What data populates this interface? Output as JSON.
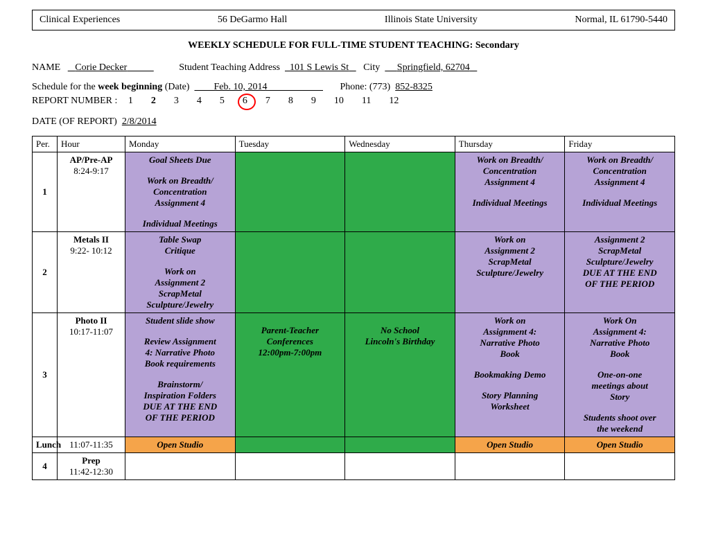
{
  "header": {
    "dept": "Clinical Experiences",
    "building": "56 DeGarmo Hall",
    "university": "Illinois State University",
    "address": "Normal, IL  61790-5440"
  },
  "title": "WEEKLY SCHEDULE FOR FULL-TIME STUDENT TEACHING: Secondary",
  "student": {
    "name_label": "NAME",
    "name": "Corie Decker",
    "teaching_addr_label": "Student Teaching Address",
    "teaching_addr": "101 S Lewis St",
    "city_label": "City",
    "city": "Springfield, 62704"
  },
  "schedule_line": {
    "prefix": "Schedule for the ",
    "bold": "week beginning",
    "suffix": " (Date)",
    "date": "Feb. 10, 2014",
    "phone_label": "Phone: (773)",
    "phone": "852-8325"
  },
  "report": {
    "label": "REPORT NUMBER :",
    "numbers": [
      "1",
      "2",
      "3",
      "4",
      "5",
      "6",
      "7",
      "8",
      "9",
      "10",
      "11",
      "12"
    ],
    "bold_index": 1,
    "circled_index": 5
  },
  "report_date": {
    "label": "DATE (OF REPORT)",
    "value": "2/8/2014"
  },
  "table": {
    "columns": [
      "Per.",
      "Hour",
      "Monday",
      "Tuesday",
      "Wednesday",
      "Thursday",
      "Friday"
    ],
    "rows": [
      {
        "per": "1",
        "lunch": false,
        "hour": {
          "class": "AP/Pre-AP",
          "time": "8:24-9:17"
        },
        "cells": [
          {
            "bg": "#b6a3d6",
            "lines": [
              "Goal Sheets Due",
              "",
              "Work on Breadth/",
              "Concentration",
              "Assignment 4",
              "",
              "Individual Meetings"
            ]
          },
          {
            "bg": "#2fab4a",
            "lines": []
          },
          {
            "bg": "#2fab4a",
            "lines": []
          },
          {
            "bg": "#b6a3d6",
            "lines": [
              "Work on Breadth/",
              "Concentration",
              "Assignment 4",
              "",
              "Individual Meetings"
            ]
          },
          {
            "bg": "#b6a3d6",
            "lines": [
              "Work on Breadth/",
              "Concentration",
              "Assignment 4",
              "",
              "Individual Meetings"
            ]
          }
        ]
      },
      {
        "per": "2",
        "lunch": false,
        "hour": {
          "class": "Metals II",
          "time": "9:22- 10:12"
        },
        "cells": [
          {
            "bg": "#b6a3d6",
            "lines": [
              "Table Swap",
              "Critique",
              "",
              "Work on",
              "Assignment 2",
              "ScrapMetal",
              "Sculpture/Jewelry"
            ]
          },
          {
            "bg": "#2fab4a",
            "lines": []
          },
          {
            "bg": "#2fab4a",
            "lines": []
          },
          {
            "bg": "#b6a3d6",
            "lines": [
              "Work on",
              "Assignment 2",
              "ScrapMetal",
              "Sculpture/Jewelry"
            ]
          },
          {
            "bg": "#b6a3d6",
            "lines": [
              "Assignment 2",
              "ScrapMetal",
              "Sculpture/Jewelry",
              "DUE AT THE END",
              "OF THE PERIOD"
            ]
          }
        ]
      },
      {
        "per": "3",
        "lunch": false,
        "hour": {
          "class": "Photo II",
          "time": "10:17-11:07"
        },
        "cells": [
          {
            "bg": "#b6a3d6",
            "lines": [
              "Student slide show",
              "",
              "Review Assignment",
              "4: Narrative Photo",
              "Book requirements",
              "",
              "Brainstorm/",
              "Inspiration Folders",
              "DUE AT THE END",
              "OF THE PERIOD"
            ]
          },
          {
            "bg": "#2fab4a",
            "lines": [
              "",
              "Parent-Teacher",
              "Conferences",
              "12:00pm-7:00pm"
            ]
          },
          {
            "bg": "#2fab4a",
            "lines": [
              "",
              "No School",
              "Lincoln's Birthday"
            ]
          },
          {
            "bg": "#b6a3d6",
            "lines": [
              "Work on",
              "Assignment 4:",
              "Narrative Photo",
              "Book",
              "",
              "Bookmaking Demo",
              "",
              "Story Planning",
              "Worksheet"
            ]
          },
          {
            "bg": "#b6a3d6",
            "lines": [
              "Work On",
              "Assignment 4:",
              "Narrative Photo",
              "Book",
              "",
              "One-on-one",
              "meetings about",
              "Story",
              "",
              "Students shoot over",
              "the weekend"
            ]
          }
        ]
      },
      {
        "per": "Lunch",
        "lunch": true,
        "hour": {
          "class": "",
          "time": "11:07-11:35"
        },
        "cells": [
          {
            "bg": "#f5a44a",
            "lines": [
              "Open Studio"
            ]
          },
          {
            "bg": "#2fab4a",
            "lines": []
          },
          {
            "bg": "#2fab4a",
            "lines": []
          },
          {
            "bg": "#f5a44a",
            "lines": [
              "Open Studio"
            ]
          },
          {
            "bg": "#f5a44a",
            "lines": [
              "Open Studio"
            ]
          }
        ]
      },
      {
        "per": "4",
        "lunch": false,
        "hour": {
          "class": "Prep",
          "time": "11:42-12:30"
        },
        "cells": [
          {
            "bg": "#ffffff",
            "lines": []
          },
          {
            "bg": "#ffffff",
            "lines": []
          },
          {
            "bg": "#ffffff",
            "lines": []
          },
          {
            "bg": "#ffffff",
            "lines": []
          },
          {
            "bg": "#ffffff",
            "lines": []
          }
        ]
      }
    ]
  }
}
